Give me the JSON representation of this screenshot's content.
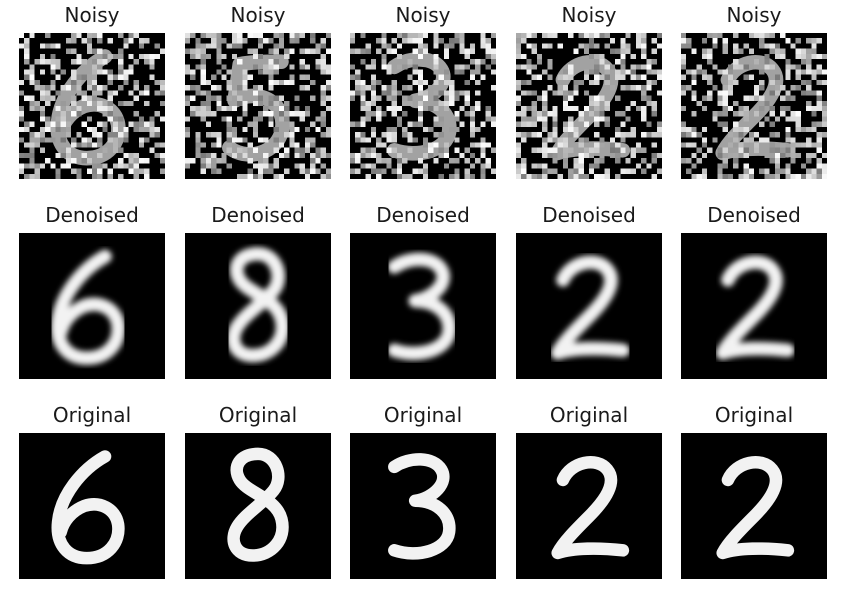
{
  "rows": [
    {
      "title": "Noisy",
      "kind": "noisy",
      "digits": [
        "6",
        "5",
        "3",
        "2",
        "2"
      ]
    },
    {
      "title": "Denoised",
      "kind": "denoised",
      "digits": [
        "6",
        "8",
        "3",
        "2",
        "2"
      ]
    },
    {
      "title": "Original",
      "kind": "original",
      "digits": [
        "6",
        "8",
        "3",
        "2",
        "2"
      ]
    }
  ],
  "colors": {
    "background": "#ffffff",
    "image_bg": "#000000",
    "digit": "#f2f2f2",
    "title_text": "#1a1a1a"
  }
}
